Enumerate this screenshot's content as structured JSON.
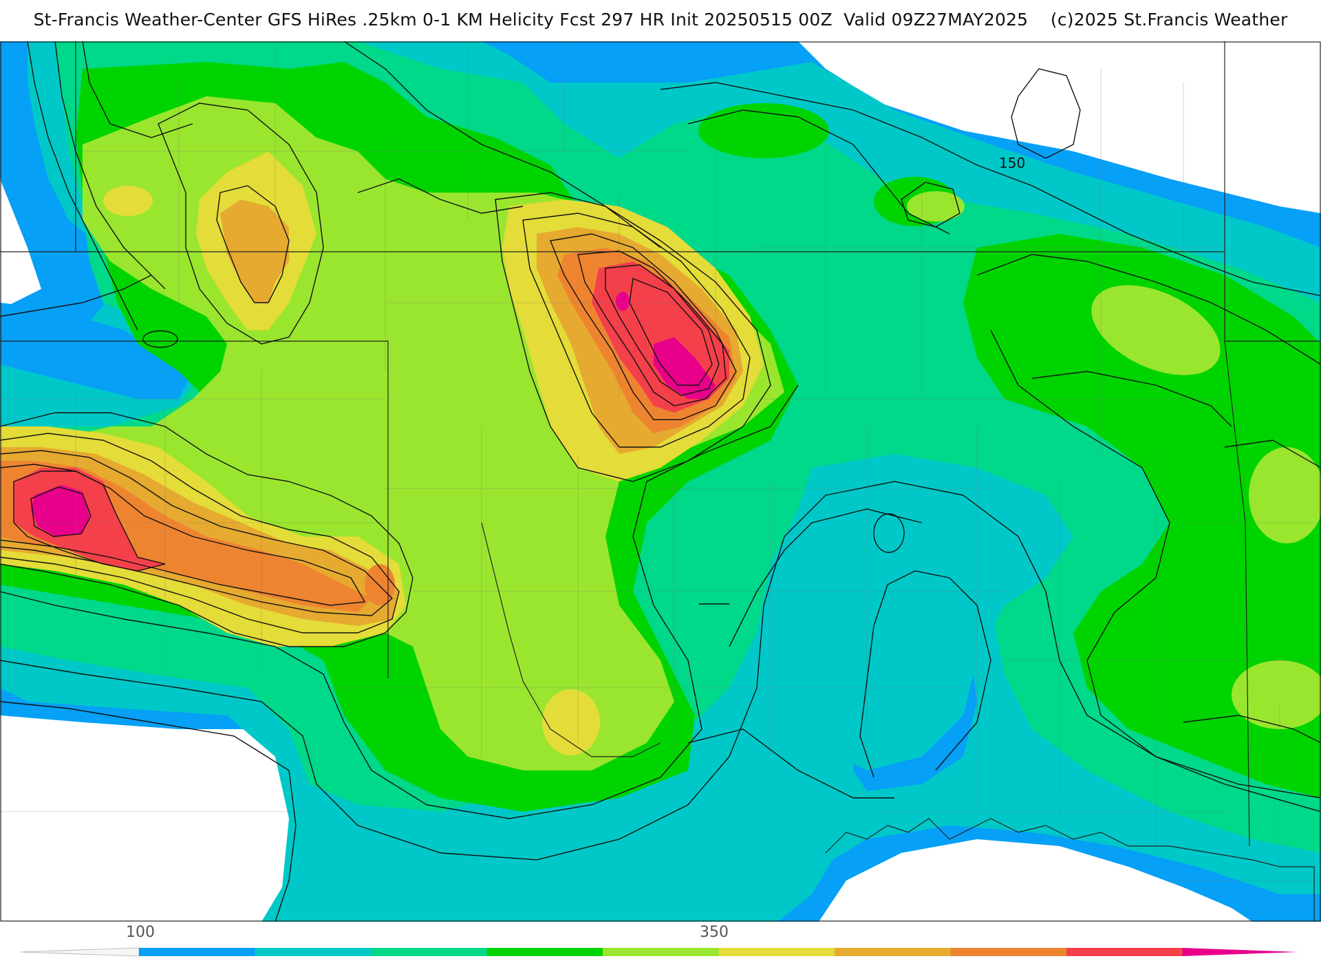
{
  "title": "St-Francis Weather-Center GFS HiRes .25km 0-1 KM Helicity Fcst 297 HR Init 20250515 00Z  Valid 09Z27MAY2025    (c)2025 St.Francis Weather",
  "map": {
    "contour_label": "150",
    "palette": {
      "white": "#ffffff",
      "blue": "#06a0f6",
      "cyan": "#00c8c8",
      "teal": "#00d88a",
      "green": "#00d400",
      "lime": "#9ae62e",
      "yellow": "#e4dc38",
      "gold": "#e6aa30",
      "orange": "#ee8430",
      "red": "#f4404a",
      "magenta": "#e8008a"
    }
  },
  "colorbar": {
    "labels": [
      "100",
      "350"
    ],
    "colors": [
      "#06a0f6",
      "#00c8c8",
      "#00d88a",
      "#00d400",
      "#9ae62e",
      "#e4dc38",
      "#e6aa30",
      "#ee8430",
      "#f4404a",
      "#e8008a"
    ]
  }
}
